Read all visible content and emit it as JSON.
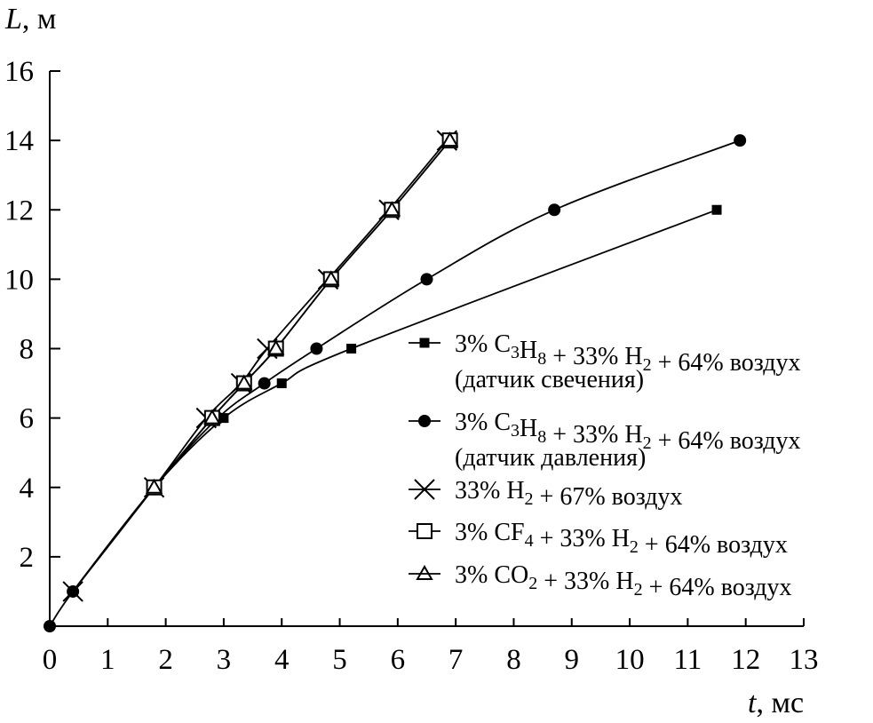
{
  "chart_data": {
    "type": "line",
    "xlabel": {
      "var": "t",
      "unit": ", мс"
    },
    "ylabel": {
      "var": "L",
      "unit": ", м"
    },
    "xlim": [
      0,
      13
    ],
    "ylim": [
      0,
      16
    ],
    "xticks": [
      0,
      1,
      2,
      3,
      4,
      5,
      6,
      7,
      8,
      9,
      10,
      11,
      12,
      13
    ],
    "yticks": [
      2,
      4,
      6,
      8,
      10,
      12,
      14,
      16
    ],
    "grid": false,
    "legend_position": "right",
    "series": [
      {
        "name": "3% C3H8 + 33% H2 + 64% воздух (датчик свечения)",
        "label_parts": [
          [
            "3% C",
            ""
          ],
          [
            "3",
            "sub"
          ],
          [
            "H",
            ""
          ],
          [
            "8",
            "sub"
          ],
          [
            " + 33% H",
            ""
          ],
          [
            "2",
            "sub"
          ],
          [
            " + 64% воздух",
            ""
          ]
        ],
        "label_line2": "(датчик свечения)",
        "marker": "square-filled",
        "x": [
          0.4,
          1.8,
          3.0,
          4.0,
          5.2,
          11.5
        ],
        "y": [
          1,
          4,
          6,
          7,
          8,
          12
        ]
      },
      {
        "name": "3% C3H8 + 33% H2 + 64% воздух (датчик давления)",
        "label_parts": [
          [
            "3% C",
            ""
          ],
          [
            "3",
            "sub"
          ],
          [
            "H",
            ""
          ],
          [
            "8",
            "sub"
          ],
          [
            " + 33% H",
            ""
          ],
          [
            "2",
            "sub"
          ],
          [
            " + 64% воздух",
            ""
          ]
        ],
        "label_line2": "(датчик давления)",
        "marker": "circle-filled",
        "x": [
          0.0,
          0.4,
          1.8,
          2.9,
          3.7,
          4.6,
          6.5,
          8.7,
          11.9
        ],
        "y": [
          0,
          1,
          4,
          6,
          7,
          8,
          10,
          12,
          14
        ]
      },
      {
        "name": "33% H2 + 67% воздух",
        "label_parts": [
          [
            "33% H",
            ""
          ],
          [
            "2",
            "sub"
          ],
          [
            " + 67% воздух",
            ""
          ]
        ],
        "marker": "x",
        "x": [
          0.4,
          1.8,
          2.7,
          3.3,
          3.75,
          4.8,
          5.85,
          6.85
        ],
        "y": [
          1,
          4,
          6,
          7,
          8,
          10,
          12,
          14
        ]
      },
      {
        "name": "3% CF4 + 33% H2 + 64% воздух",
        "label_parts": [
          [
            "3% CF",
            ""
          ],
          [
            "4",
            "sub"
          ],
          [
            " + 33% H",
            ""
          ],
          [
            "2",
            "sub"
          ],
          [
            " + 64% воздух",
            ""
          ]
        ],
        "marker": "square-open",
        "x": [
          1.8,
          2.8,
          3.35,
          3.9,
          4.85,
          5.9,
          6.9
        ],
        "y": [
          4,
          6,
          7,
          8,
          10,
          12,
          14
        ]
      },
      {
        "name": "3% CO2 + 33% H2 + 64% воздух",
        "label_parts": [
          [
            "3% CO",
            ""
          ],
          [
            "2",
            "sub"
          ],
          [
            " + 33% H",
            ""
          ],
          [
            "2",
            "sub"
          ],
          [
            " + 64% воздух",
            ""
          ]
        ],
        "marker": "triangle-open",
        "x": [
          1.8,
          2.8,
          3.35,
          3.9,
          4.85,
          5.9,
          6.9
        ],
        "y": [
          4,
          6,
          7,
          8,
          10,
          12,
          14
        ]
      }
    ]
  }
}
